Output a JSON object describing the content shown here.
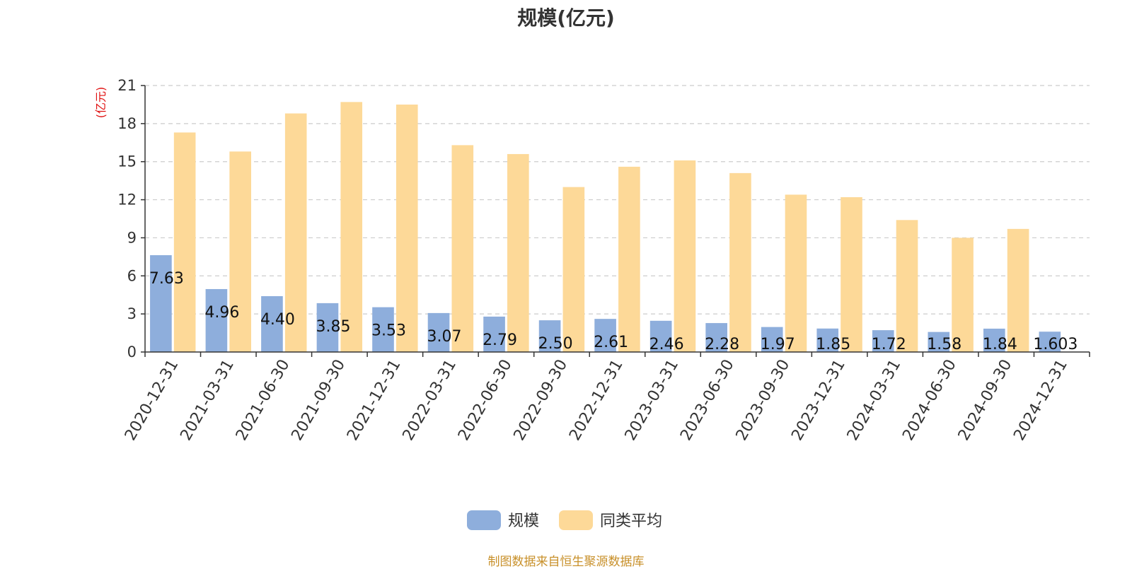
{
  "chart_data": {
    "type": "bar",
    "title": "规模(亿元)",
    "ylabel": "(亿元)",
    "xlabel": "",
    "ylim": [
      0,
      21
    ],
    "yticks": [
      "0",
      "3",
      "6",
      "9",
      "12",
      "15",
      "18",
      "21"
    ],
    "grid": true,
    "legend_position": "bottom",
    "categories": [
      "2020-12-31",
      "2021-03-31",
      "2021-06-30",
      "2021-09-30",
      "2021-12-31",
      "2022-03-31",
      "2022-06-30",
      "2022-09-30",
      "2022-12-31",
      "2023-03-31",
      "2023-06-30",
      "2023-09-30",
      "2023-12-31",
      "2024-03-31",
      "2024-06-30",
      "2024-09-30",
      "2024-12-31"
    ],
    "series": [
      {
        "name": "规模",
        "color": "#8eaedc",
        "values": [
          7.63,
          4.96,
          4.4,
          3.85,
          3.53,
          3.07,
          2.79,
          2.5,
          2.61,
          2.46,
          2.28,
          1.97,
          1.85,
          1.72,
          1.58,
          1.84,
          1.603
        ],
        "labels": [
          "7.63",
          "4.96",
          "4.40",
          "3.85",
          "3.53",
          "3.07",
          "2.79",
          "2.50",
          "2.61",
          "2.46",
          "2.28",
          "1.97",
          "1.85",
          "1.72",
          "1.58",
          "1.84",
          "1.603"
        ]
      },
      {
        "name": "同类平均",
        "color": "#fdd998",
        "values": [
          17.3,
          15.8,
          18.8,
          19.7,
          19.5,
          16.3,
          15.6,
          13.0,
          14.6,
          15.1,
          14.1,
          12.4,
          12.2,
          10.4,
          9.0,
          9.7,
          null
        ]
      }
    ]
  },
  "source_note": "制图数据来自恒生聚源数据库"
}
